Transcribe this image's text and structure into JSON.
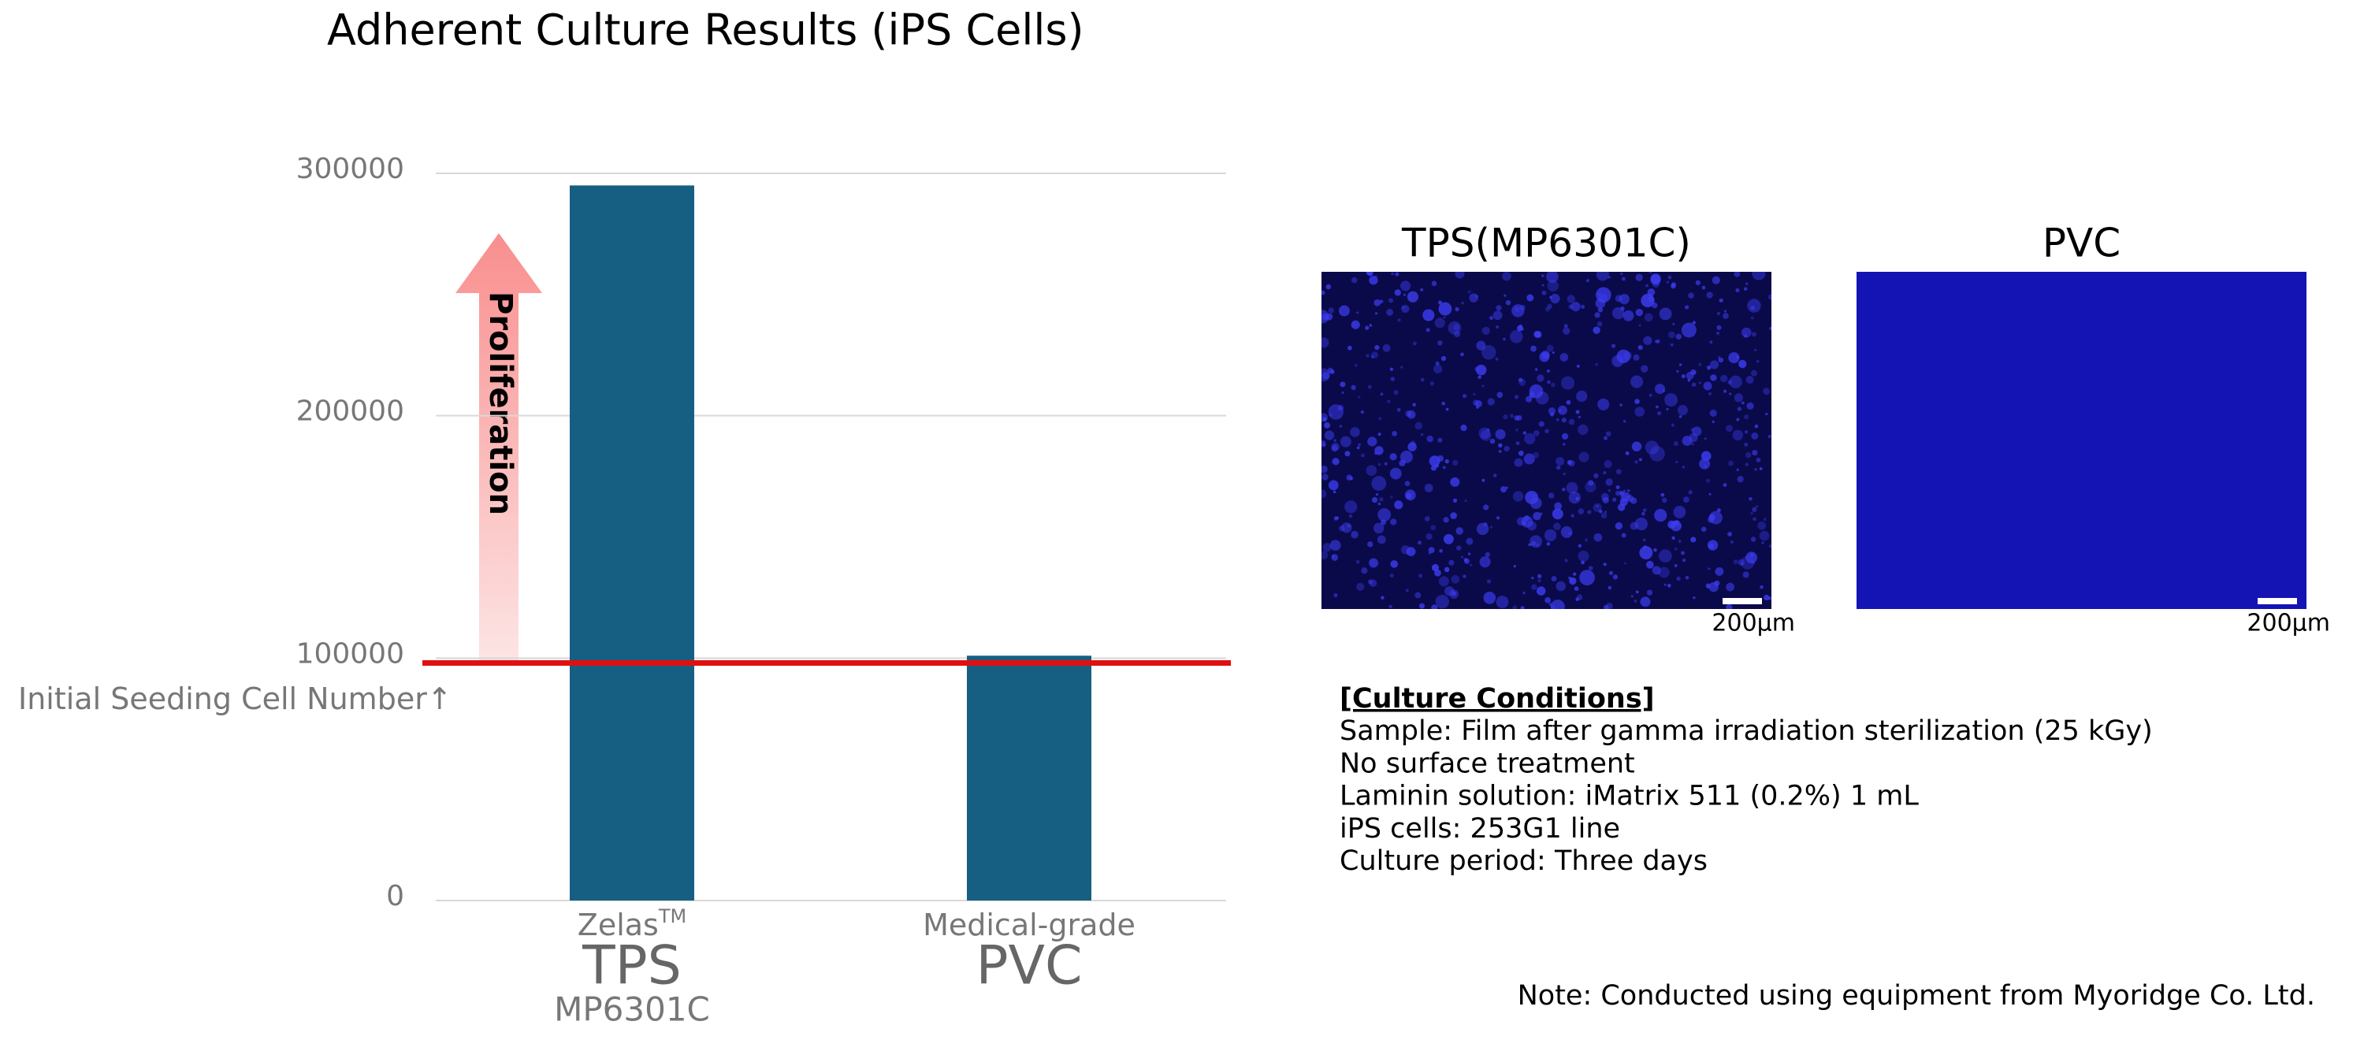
{
  "chart_data": {
    "type": "bar",
    "title": "Adherent Culture Results (iPS Cells)",
    "categories": [
      "TPS",
      "PVC"
    ],
    "category_prefixes": [
      "Zelas",
      "Medical-grade"
    ],
    "prefix_superscripts": [
      "TM",
      null
    ],
    "category_suffixes": [
      "MP6301C",
      null
    ],
    "values": [
      295000,
      101000
    ],
    "color": "#175f82",
    "ylim": [
      0,
      300000
    ],
    "yticks": [
      0,
      100000,
      200000,
      300000
    ],
    "grid": true,
    "reference_line": {
      "value": 98000,
      "label": "Initial Seeding Cell Number↑",
      "color": "#e01010"
    },
    "annotation": "Proliferation"
  },
  "images": [
    {
      "title": "TPS(MP6301C)",
      "scale": "200μm"
    },
    {
      "title": "PVC",
      "scale": "200μm"
    }
  ],
  "conditions": {
    "heading": "[Culture Conditions]",
    "lines": [
      "Sample: Film after gamma irradiation sterilization (25 kGy)",
      "No surface treatment",
      "Laminin solution: iMatrix 511 (0.2%) 1 mL",
      "iPS cells: 253G1 line",
      "Culture period: Three days"
    ]
  },
  "note": "Note: Conducted using equipment from Myoridge Co. Ltd."
}
